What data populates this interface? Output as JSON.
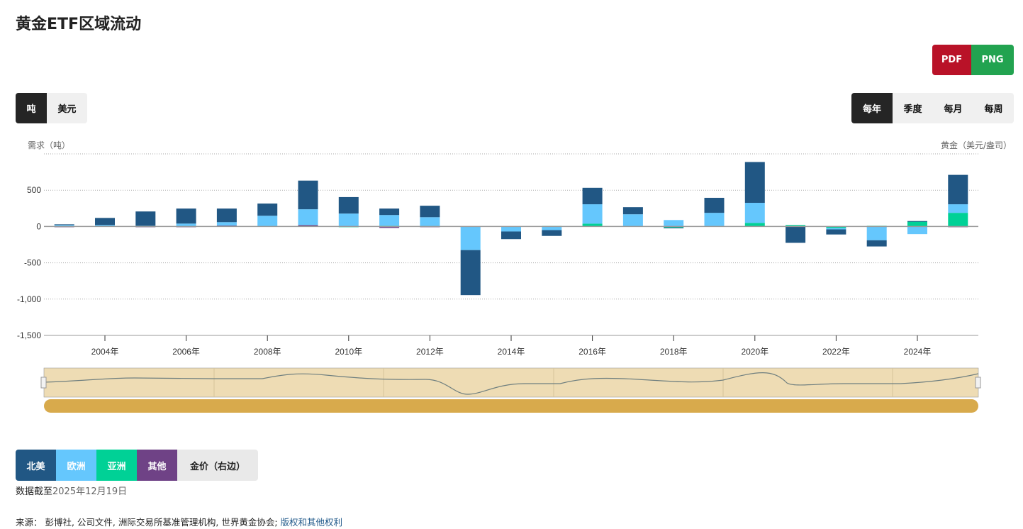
{
  "title": "黄金ETF区域流动",
  "export": {
    "pdf": "PDF",
    "png": "PNG",
    "pdf_color": "#b91228",
    "png_color": "#22a350"
  },
  "units": {
    "options": [
      "吨",
      "美元"
    ],
    "selected": "吨"
  },
  "periods": {
    "options": [
      "每年",
      "季度",
      "每月",
      "每周"
    ],
    "selected": "每年"
  },
  "legend": [
    "北美",
    "欧洲",
    "亚洲",
    "其他",
    "金价（右边）"
  ],
  "note": {
    "label": "数据截至",
    "date": "2025年12月19日"
  },
  "source": {
    "label": "来源：",
    "text": " 彭博社, 公司文件, 洲际交易所基准管理机构, 世界黄金协会; ",
    "link": "版权和其他权利"
  },
  "chart_data": {
    "type": "bar",
    "stacked": true,
    "title": "黄金ETF区域流动",
    "ylabel": "需求（吨）",
    "ylabel_right": "黄金（美元/盎司）",
    "ylim": [
      -1500,
      1000
    ],
    "yticks": [
      -1500,
      -1000,
      -500,
      0,
      500
    ],
    "ytick_labels": [
      "-1,500",
      "-1,000",
      "-500",
      "0",
      "500"
    ],
    "xtick_labels": [
      "2004年",
      "2006年",
      "2008年",
      "2010年",
      "2012年",
      "2014年",
      "2016年",
      "2018年",
      "2020年",
      "2022年",
      "2024年"
    ],
    "categories": [
      2003,
      2004,
      2005,
      2006,
      2007,
      2008,
      2009,
      2010,
      2011,
      2012,
      2013,
      2014,
      2015,
      2016,
      2017,
      2018,
      2019,
      2020,
      2021,
      2022,
      2023,
      2024,
      2025
    ],
    "series": [
      {
        "name": "北美",
        "color": "#215784",
        "values": [
          10,
          98,
          197,
          207,
          187,
          168,
          395,
          227,
          89,
          158,
          -620,
          -105,
          -80,
          227,
          98,
          -10,
          207,
          562,
          -220,
          -70,
          -85,
          5,
          405
        ]
      },
      {
        "name": "欧洲",
        "color": "#65c7fd",
        "values": [
          20,
          20,
          10,
          40,
          47,
          148,
          217,
          178,
          148,
          128,
          -320,
          -65,
          -50,
          267,
          168,
          89,
          183,
          277,
          -5,
          -20,
          -185,
          -105,
          118
        ]
      },
      {
        "name": "亚洲",
        "color": "#00d196",
        "values": [
          0,
          0,
          0,
          0,
          0,
          0,
          0,
          -5,
          10,
          0,
          0,
          0,
          8,
          34,
          0,
          -15,
          0,
          44,
          20,
          -20,
          10,
          70,
          188
        ]
      },
      {
        "name": "其他",
        "color": "#6f4286",
        "values": [
          -5,
          0,
          -5,
          -5,
          13,
          0,
          20,
          0,
          -20,
          -5,
          -5,
          -4,
          0,
          5,
          0,
          0,
          5,
          5,
          0,
          0,
          -5,
          0,
          -5
        ]
      }
    ]
  }
}
